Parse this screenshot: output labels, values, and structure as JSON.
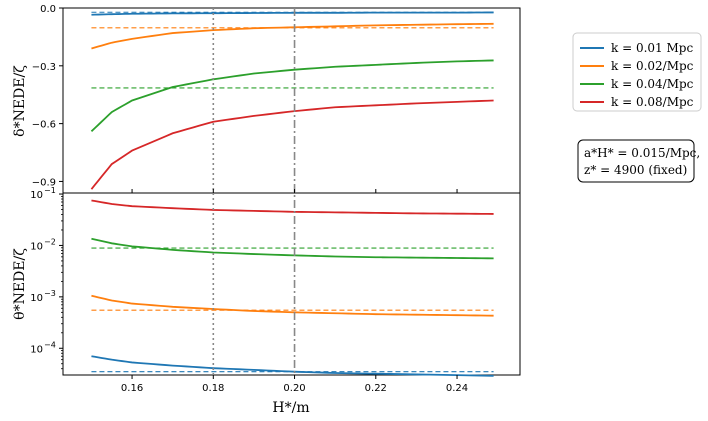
{
  "chart_data": {
    "type": "line",
    "xlabel": "H*/m",
    "xlim": [
      0.143,
      0.2555
    ],
    "xticks": [
      "0.16",
      "0.18",
      "0.20",
      "0.22",
      "0.24"
    ],
    "vlines": [
      {
        "x": 0.18,
        "style": "dotted",
        "color": "#888888"
      },
      {
        "x": 0.2,
        "style": "dashdot",
        "color": "#888888"
      }
    ],
    "legend": {
      "placement": "outside-right",
      "entries": [
        "k = 0.01 Mpc",
        "k = 0.02/Mpc",
        "k = 0.04/Mpc",
        "k = 0.08/Mpc"
      ]
    },
    "annotation": {
      "lines": [
        "a*H* = 0.015/Mpc,",
        "z* = 4900 (fixed)"
      ]
    },
    "series_colors": [
      "#1f77b4",
      "#ff7f0e",
      "#2ca02c",
      "#d62728"
    ],
    "panels": [
      {
        "name": "top",
        "ylabel": "δ*NEDE/ζ",
        "yscale": "linear",
        "ylim": [
          -0.96,
          0.0
        ],
        "yticks": [
          "0.0",
          "−0.3",
          "−0.6",
          "−0.9"
        ],
        "x": [
          0.15,
          0.155,
          0.16,
          0.17,
          0.18,
          0.19,
          0.2,
          0.21,
          0.22,
          0.23,
          0.24,
          0.249
        ],
        "series": [
          {
            "values": [
              -0.035,
              -0.032,
              -0.03,
              -0.028,
              -0.027,
              -0.026,
              -0.025,
              -0.025,
              -0.024,
              -0.024,
              -0.024,
              -0.023
            ],
            "asymptote": -0.022
          },
          {
            "values": [
              -0.21,
              -0.18,
              -0.16,
              -0.13,
              -0.115,
              -0.105,
              -0.1,
              -0.095,
              -0.09,
              -0.087,
              -0.084,
              -0.082
            ],
            "asymptote": -0.103
          },
          {
            "values": [
              -0.64,
              -0.54,
              -0.48,
              -0.41,
              -0.37,
              -0.34,
              -0.32,
              -0.305,
              -0.295,
              -0.285,
              -0.277,
              -0.272
            ],
            "asymptote": -0.415
          },
          {
            "values": [
              -0.94,
              -0.81,
              -0.74,
              -0.65,
              -0.59,
              -0.56,
              -0.535,
              -0.515,
              -0.505,
              -0.495,
              -0.487,
              -0.48
            ],
            "asymptote": null
          }
        ]
      },
      {
        "name": "bottom",
        "ylabel": "θ*NEDE/ζ",
        "yscale": "log",
        "ylim_log10": [
          -4.52,
          -0.98
        ],
        "yticks": [
          {
            "base": "10",
            "exp": "−1",
            "value": -1
          },
          {
            "base": "10",
            "exp": "−2",
            "value": -2
          },
          {
            "base": "10",
            "exp": "−3",
            "value": -3
          },
          {
            "base": "10",
            "exp": "−4",
            "value": -4
          }
        ],
        "x": [
          0.15,
          0.155,
          0.16,
          0.17,
          0.18,
          0.19,
          0.2,
          0.21,
          0.22,
          0.23,
          0.24,
          0.249
        ],
        "series": [
          {
            "values": [
              7e-05,
              6e-05,
              5.3e-05,
              4.6e-05,
              4.1e-05,
              3.8e-05,
              3.5e-05,
              3.3e-05,
              3.2e-05,
              3.1e-05,
              3e-05,
              2.9e-05
            ],
            "asymptote": 3.5e-05
          },
          {
            "values": [
              0.00105,
              0.00085,
              0.00074,
              0.00064,
              0.00058,
              0.00053,
              0.0005,
              0.00048,
              0.00046,
              0.00045,
              0.00044,
              0.00043
            ],
            "asymptote": 0.00055
          },
          {
            "values": [
              0.0135,
              0.011,
              0.0096,
              0.0082,
              0.0073,
              0.0068,
              0.0064,
              0.0061,
              0.0059,
              0.0058,
              0.0057,
              0.0056
            ],
            "asymptote": 0.0089
          },
          {
            "values": [
              0.075,
              0.064,
              0.058,
              0.053,
              0.049,
              0.047,
              0.045,
              0.044,
              0.043,
              0.042,
              0.0415,
              0.041
            ],
            "asymptote": null
          }
        ]
      }
    ]
  }
}
